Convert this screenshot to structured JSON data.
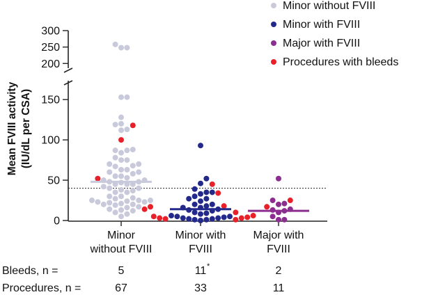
{
  "chart_data": {
    "type": "scatter",
    "ylabel_line1": "Mean FVIII activity",
    "ylabel_line2": "(IU/dL per CSA)",
    "ylim_lower": [
      0,
      170
    ],
    "ylim_upper": [
      190,
      300
    ],
    "yticks_lower": [
      "0",
      "50",
      "100",
      "150"
    ],
    "yticks_upper": [
      "200",
      "250",
      "300"
    ],
    "reference_line": 40,
    "categories": [
      "Minor\nwithout FVIII",
      "Minor with\nFVIII",
      "Major with\nFVIII"
    ],
    "legend": [
      {
        "name": "Minor without FVIII",
        "color": "#c9c9dc"
      },
      {
        "name": "Minor with FVIII",
        "color": "#23298a"
      },
      {
        "name": "Major with FVIII",
        "color": "#8c2e8f"
      },
      {
        "name": "Procedures with bleeds",
        "color": "#e8202a"
      }
    ],
    "series": [
      {
        "name": "Minor without FVIII",
        "color": "#c9c9dc",
        "mean": 48,
        "values": [
          258,
          248,
          248,
          153,
          153,
          128,
          120,
          119,
          113,
          112,
          88,
          87,
          87,
          84,
          78,
          75,
          75,
          70,
          70,
          68,
          67,
          63,
          63,
          60,
          60,
          58,
          55,
          55,
          53,
          50,
          50,
          48,
          48,
          47,
          45,
          45,
          45,
          42,
          40,
          40,
          38,
          37,
          35,
          35,
          30,
          30,
          28,
          27,
          25,
          25,
          25,
          24,
          23,
          23,
          22,
          21,
          20,
          20,
          19,
          17,
          16,
          14,
          13,
          12,
          10,
          8,
          5
        ]
      },
      {
        "name": "Minor with FVIII",
        "color": "#23298a",
        "mean": 14,
        "values": [
          93,
          52,
          46,
          39,
          35,
          35,
          33,
          30,
          27,
          27,
          24,
          20,
          20,
          18,
          16,
          16,
          14,
          13,
          12,
          10,
          9,
          8,
          6,
          5,
          5,
          4,
          3,
          3,
          2,
          2,
          1,
          1,
          0
        ]
      },
      {
        "name": "Major with FVIII",
        "color": "#8c2e8f",
        "mean": 12,
        "values": [
          52,
          25,
          21,
          20,
          14,
          13,
          12,
          10,
          5,
          1,
          1
        ]
      }
    ],
    "bleeds": [
      {
        "category": 0,
        "values": [
          118,
          100,
          52,
          17,
          14
        ]
      },
      {
        "category": 1,
        "values": [
          45,
          34,
          18,
          10,
          6,
          5,
          4,
          3,
          3,
          2,
          1
        ]
      },
      {
        "category": 2,
        "values": [
          25,
          17
        ]
      }
    ]
  },
  "table": {
    "rows": [
      {
        "label": "Bleeds, n =",
        "values": [
          "5",
          "11",
          "2"
        ],
        "note": "*"
      },
      {
        "label": "Procedures, n =",
        "values": [
          "67",
          "33",
          "11"
        ],
        "note": ""
      }
    ]
  }
}
